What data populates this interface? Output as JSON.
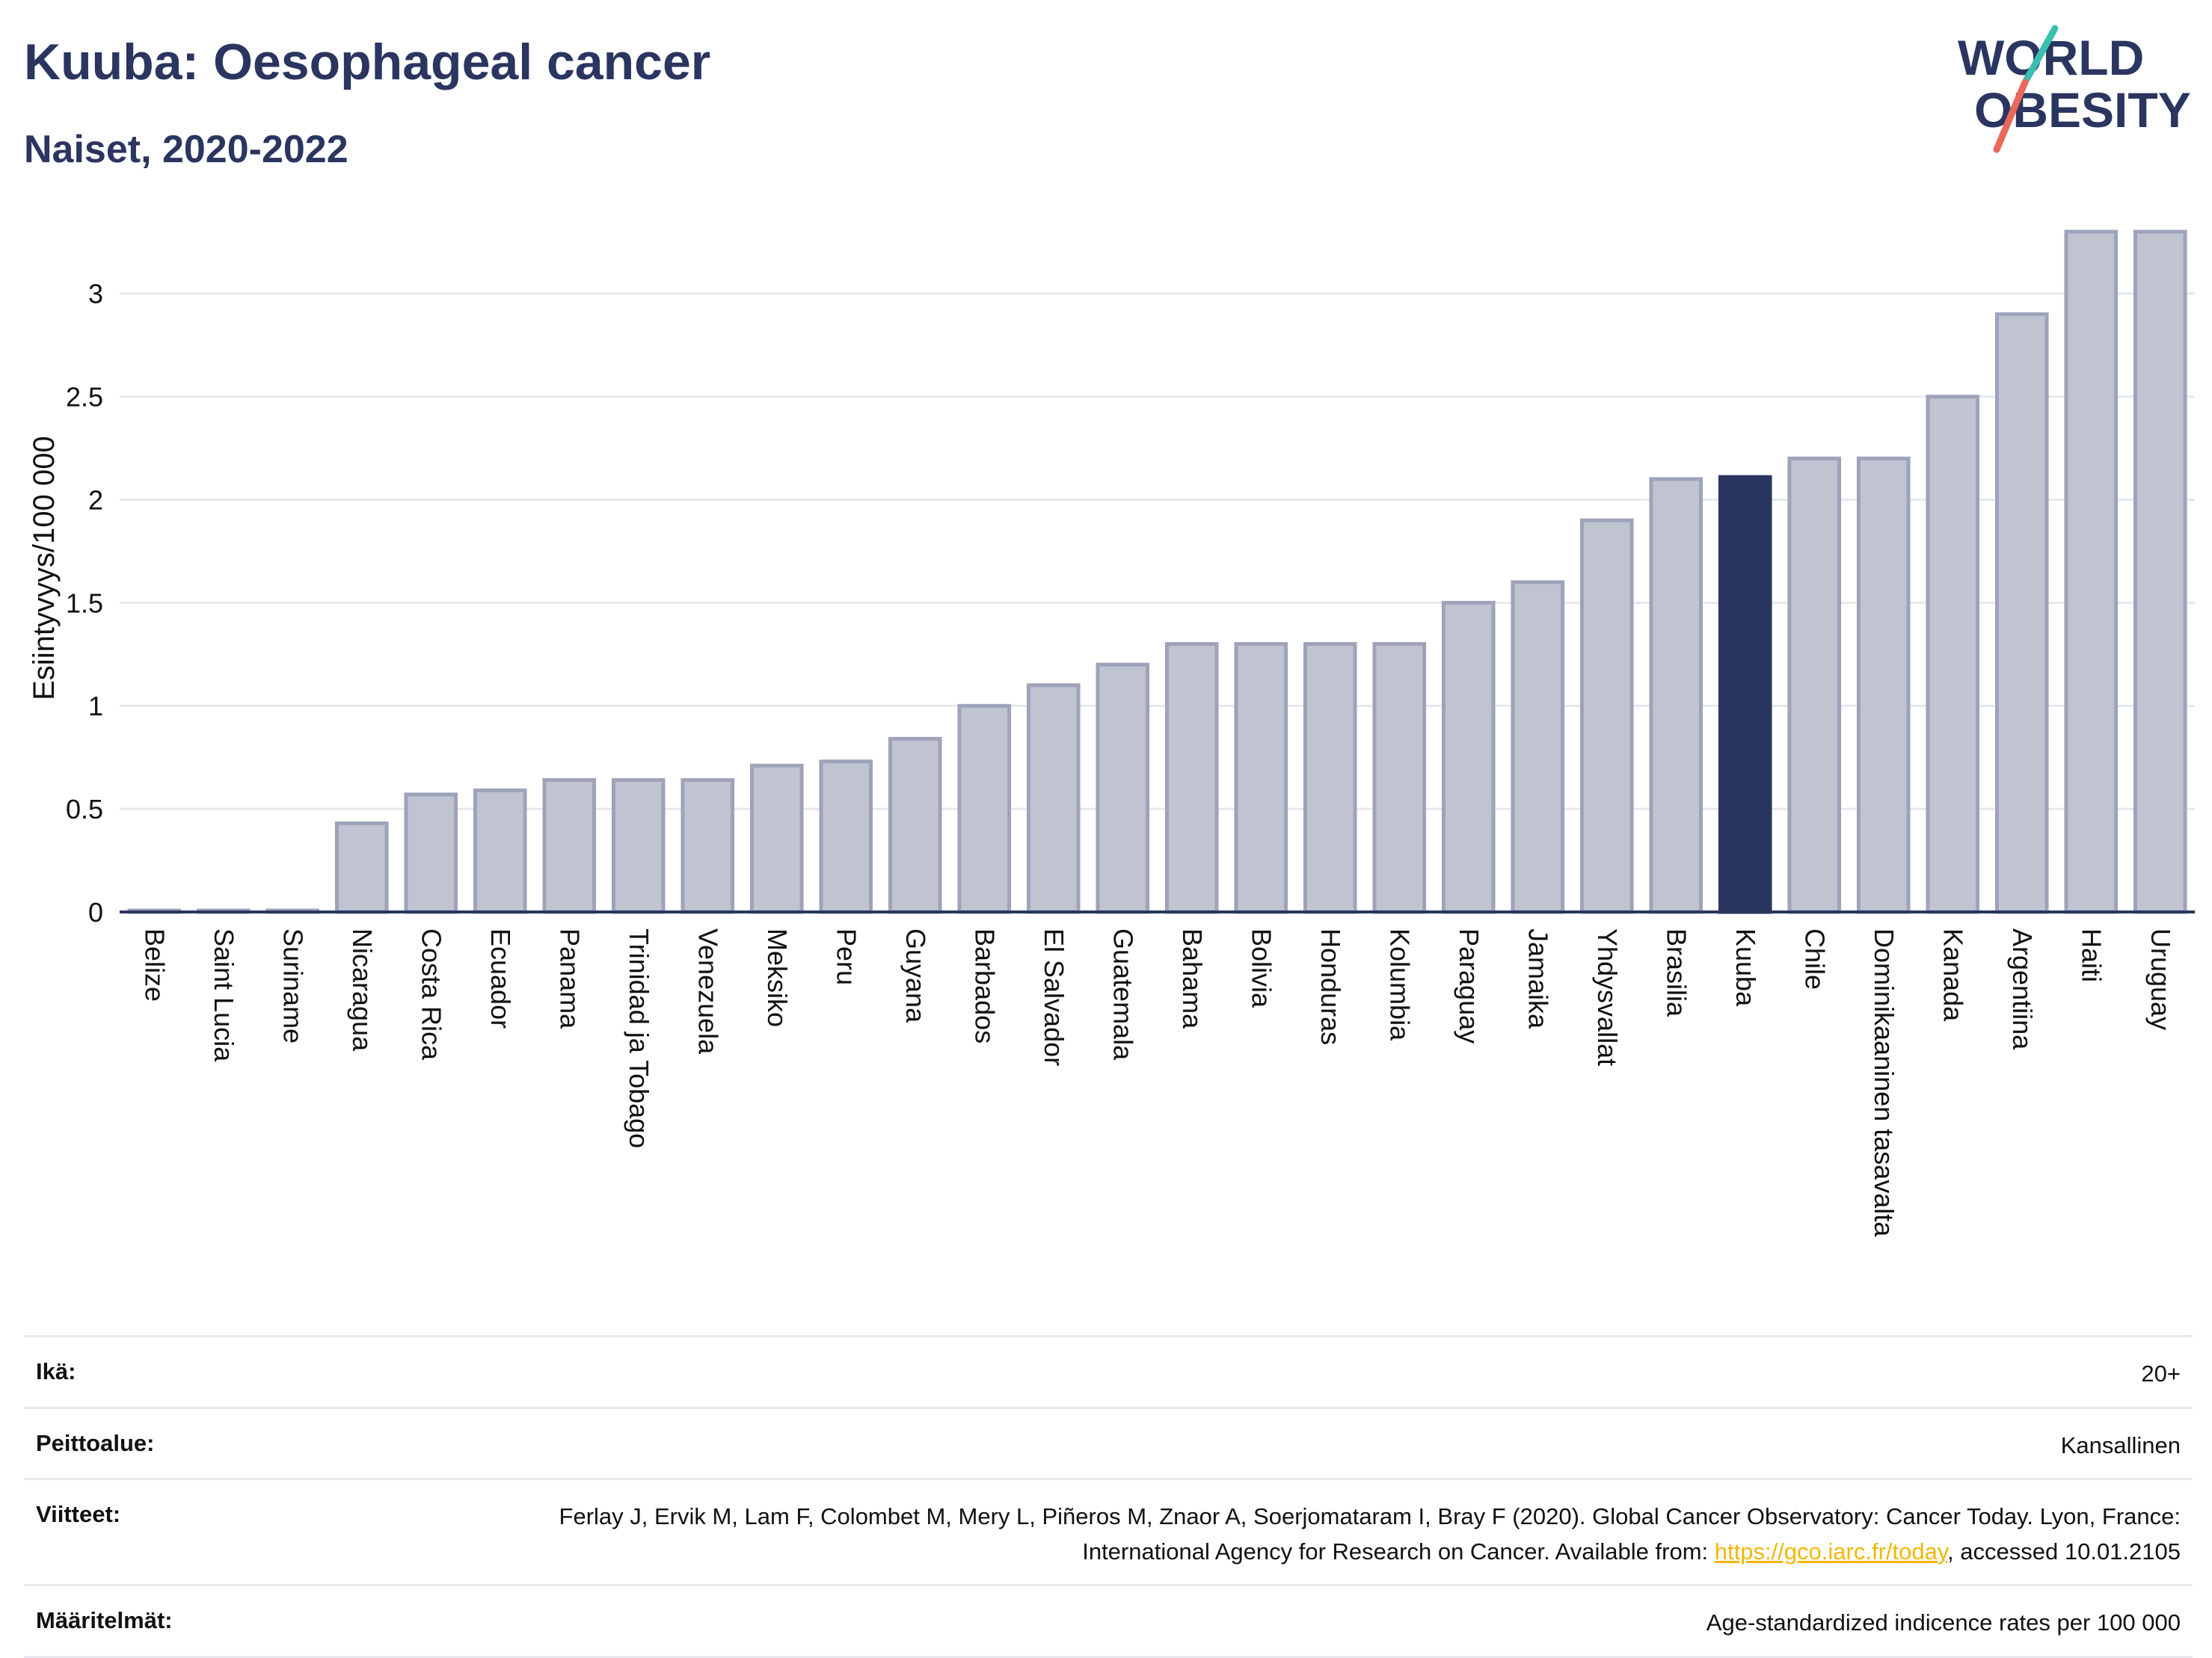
{
  "header": {
    "title": "Kuuba: Oesophageal cancer",
    "subtitle": "Naiset, 2020-2022"
  },
  "logo": {
    "line1": "WORLD",
    "line2": "OBESITY"
  },
  "colors": {
    "bar_default": "#c0c4d1",
    "bar_default_stroke": "#9ea3ba",
    "bar_highlight": "#2a3560",
    "text": "#2a3560",
    "grid": "#e6e8ee"
  },
  "chart_data": {
    "type": "bar",
    "ylabel": "Esiintyvyys/100 000",
    "ylim": [
      0,
      3.3
    ],
    "yticks": [
      0,
      0.5,
      1,
      1.5,
      2,
      2.5,
      3
    ],
    "ytick_labels": [
      "0",
      "0.5",
      "1",
      "1.5",
      "2",
      "2.5",
      "3"
    ],
    "grid": true,
    "highlight": "Kuuba",
    "categories": [
      "Belize",
      "Saint Lucia",
      "Suriname",
      "Nicaragua",
      "Costa Rica",
      "Ecuador",
      "Panama",
      "Trinidad ja Tobago",
      "Venezuela",
      "Meksiko",
      "Peru",
      "Guyana",
      "Barbados",
      "El Salvador",
      "Guatemala",
      "Bahama",
      "Bolivia",
      "Honduras",
      "Kolumbia",
      "Paraguay",
      "Jamaika",
      "Yhdysvallat",
      "Brasilia",
      "Kuuba",
      "Chile",
      "Dominikaaninen tasavalta",
      "Kanada",
      "Argentiina",
      "Haiti",
      "Uruguay"
    ],
    "values": [
      0,
      0,
      0,
      0.43,
      0.57,
      0.59,
      0.64,
      0.64,
      0.64,
      0.71,
      0.73,
      0.84,
      1.0,
      1.1,
      1.2,
      1.3,
      1.3,
      1.3,
      1.3,
      1.5,
      1.6,
      1.9,
      2.1,
      2.11,
      2.2,
      2.2,
      2.5,
      2.9,
      3.3,
      3.3
    ]
  },
  "meta": {
    "age_label": "Ikä:",
    "age_value": "20+",
    "coverage_label": "Peittoalue:",
    "coverage_value": "Kansallinen",
    "references_label": "Viitteet:",
    "references_text": "Ferlay J, Ervik M, Lam F, Colombet M, Mery L, Piñeros M, Znaor A, Soerjomataram I, Bray F (2020). Global Cancer Observatory: Cancer Today. Lyon, France: International Agency for Research on Cancer. Available from: ",
    "references_link": "https://gco.iarc.fr/today",
    "references_suffix": ", accessed 10.01.2105",
    "definitions_label": "Määritelmät:",
    "definitions_value": "Age-standardized indicence rates per 100 000"
  }
}
